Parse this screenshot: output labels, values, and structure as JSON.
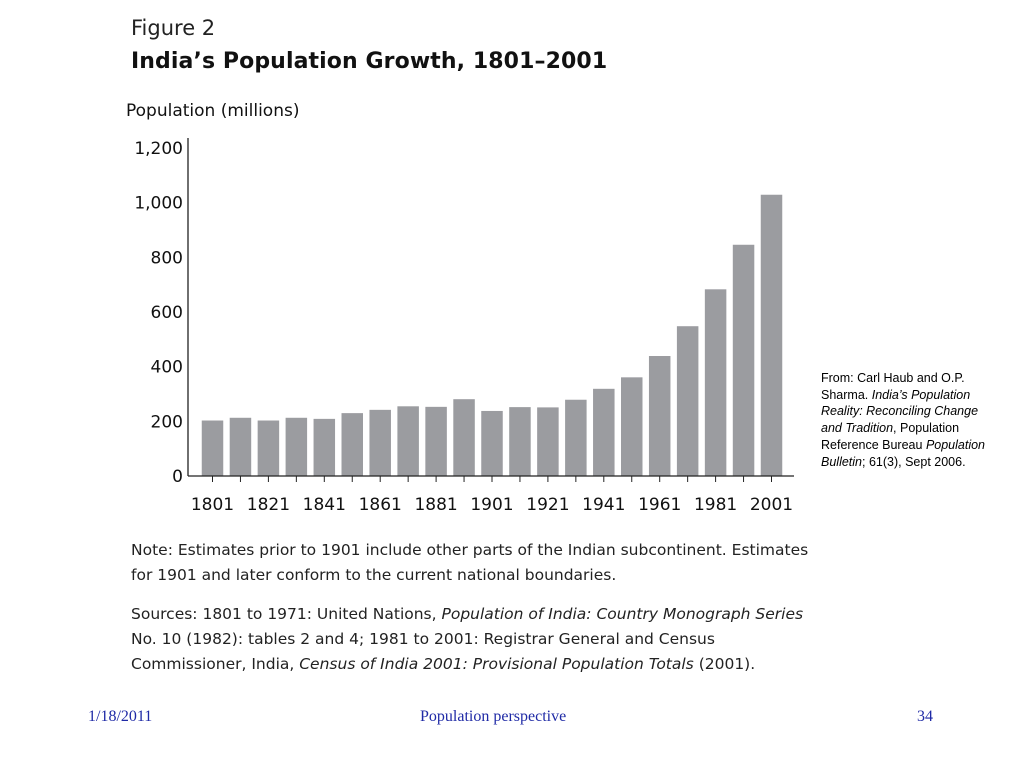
{
  "figure": {
    "label": "Figure 2",
    "title": "India’s Population Growth, 1801–2001"
  },
  "chart_data": {
    "type": "bar",
    "title": "India’s Population Growth, 1801–2001",
    "xlabel": "",
    "ylabel": "Population (millions)",
    "ylim": [
      0,
      1200
    ],
    "yticks": [
      0,
      200,
      400,
      600,
      800,
      1000,
      1200
    ],
    "ytick_labels": [
      "0",
      "200",
      "400",
      "600",
      "800",
      "1,000",
      "1,200"
    ],
    "categories": [
      "1801",
      "1811",
      "1821",
      "1831",
      "1841",
      "1851",
      "1861",
      "1871",
      "1881",
      "1891",
      "1901",
      "1911",
      "1921",
      "1931",
      "1941",
      "1951",
      "1961",
      "1971",
      "1981",
      "1991",
      "2001"
    ],
    "xtick_labels": [
      "1801",
      "1821",
      "1841",
      "1861",
      "1881",
      "1901",
      "1921",
      "1941",
      "1961",
      "1981",
      "2001"
    ],
    "values": [
      203,
      213,
      203,
      213,
      209,
      230,
      242,
      255,
      253,
      281,
      238,
      252,
      251,
      279,
      319,
      361,
      439,
      548,
      683,
      846,
      1029
    ],
    "bar_color": "#9b9ca0",
    "grid": false,
    "legend": "none"
  },
  "notes": {
    "note": "Note: Estimates prior to 1901 include other parts of the Indian subcontinent. Estimates for 1901 and later conform to the current national boundaries.",
    "sources_1": "Sources: 1801 to 1971: United Nations, ",
    "sources_2": "Population of India: Country Monograph Series",
    "sources_3": " No. 10 (1982): tables 2 and 4; 1981 to 2001: Registrar General and Census Commissioner, India, ",
    "sources_4": "Census of India 2001: Provisional Population Totals",
    "sources_5": " (2001)."
  },
  "side_note": {
    "part1": "From: Carl Haub and O.P. Sharma. ",
    "part2": "India’s Population Reality: Reconciling Change and Tradition",
    "part3": ", Population Reference Bureau ",
    "part4": "Population Bulletin",
    "part5": "; 61(3), Sept 2006."
  },
  "footer": {
    "date": "1/18/2011",
    "title": "Population perspective",
    "page": "34"
  },
  "colors": {
    "footer_text": "#1f2aa6",
    "bar": "#9b9ca0"
  }
}
